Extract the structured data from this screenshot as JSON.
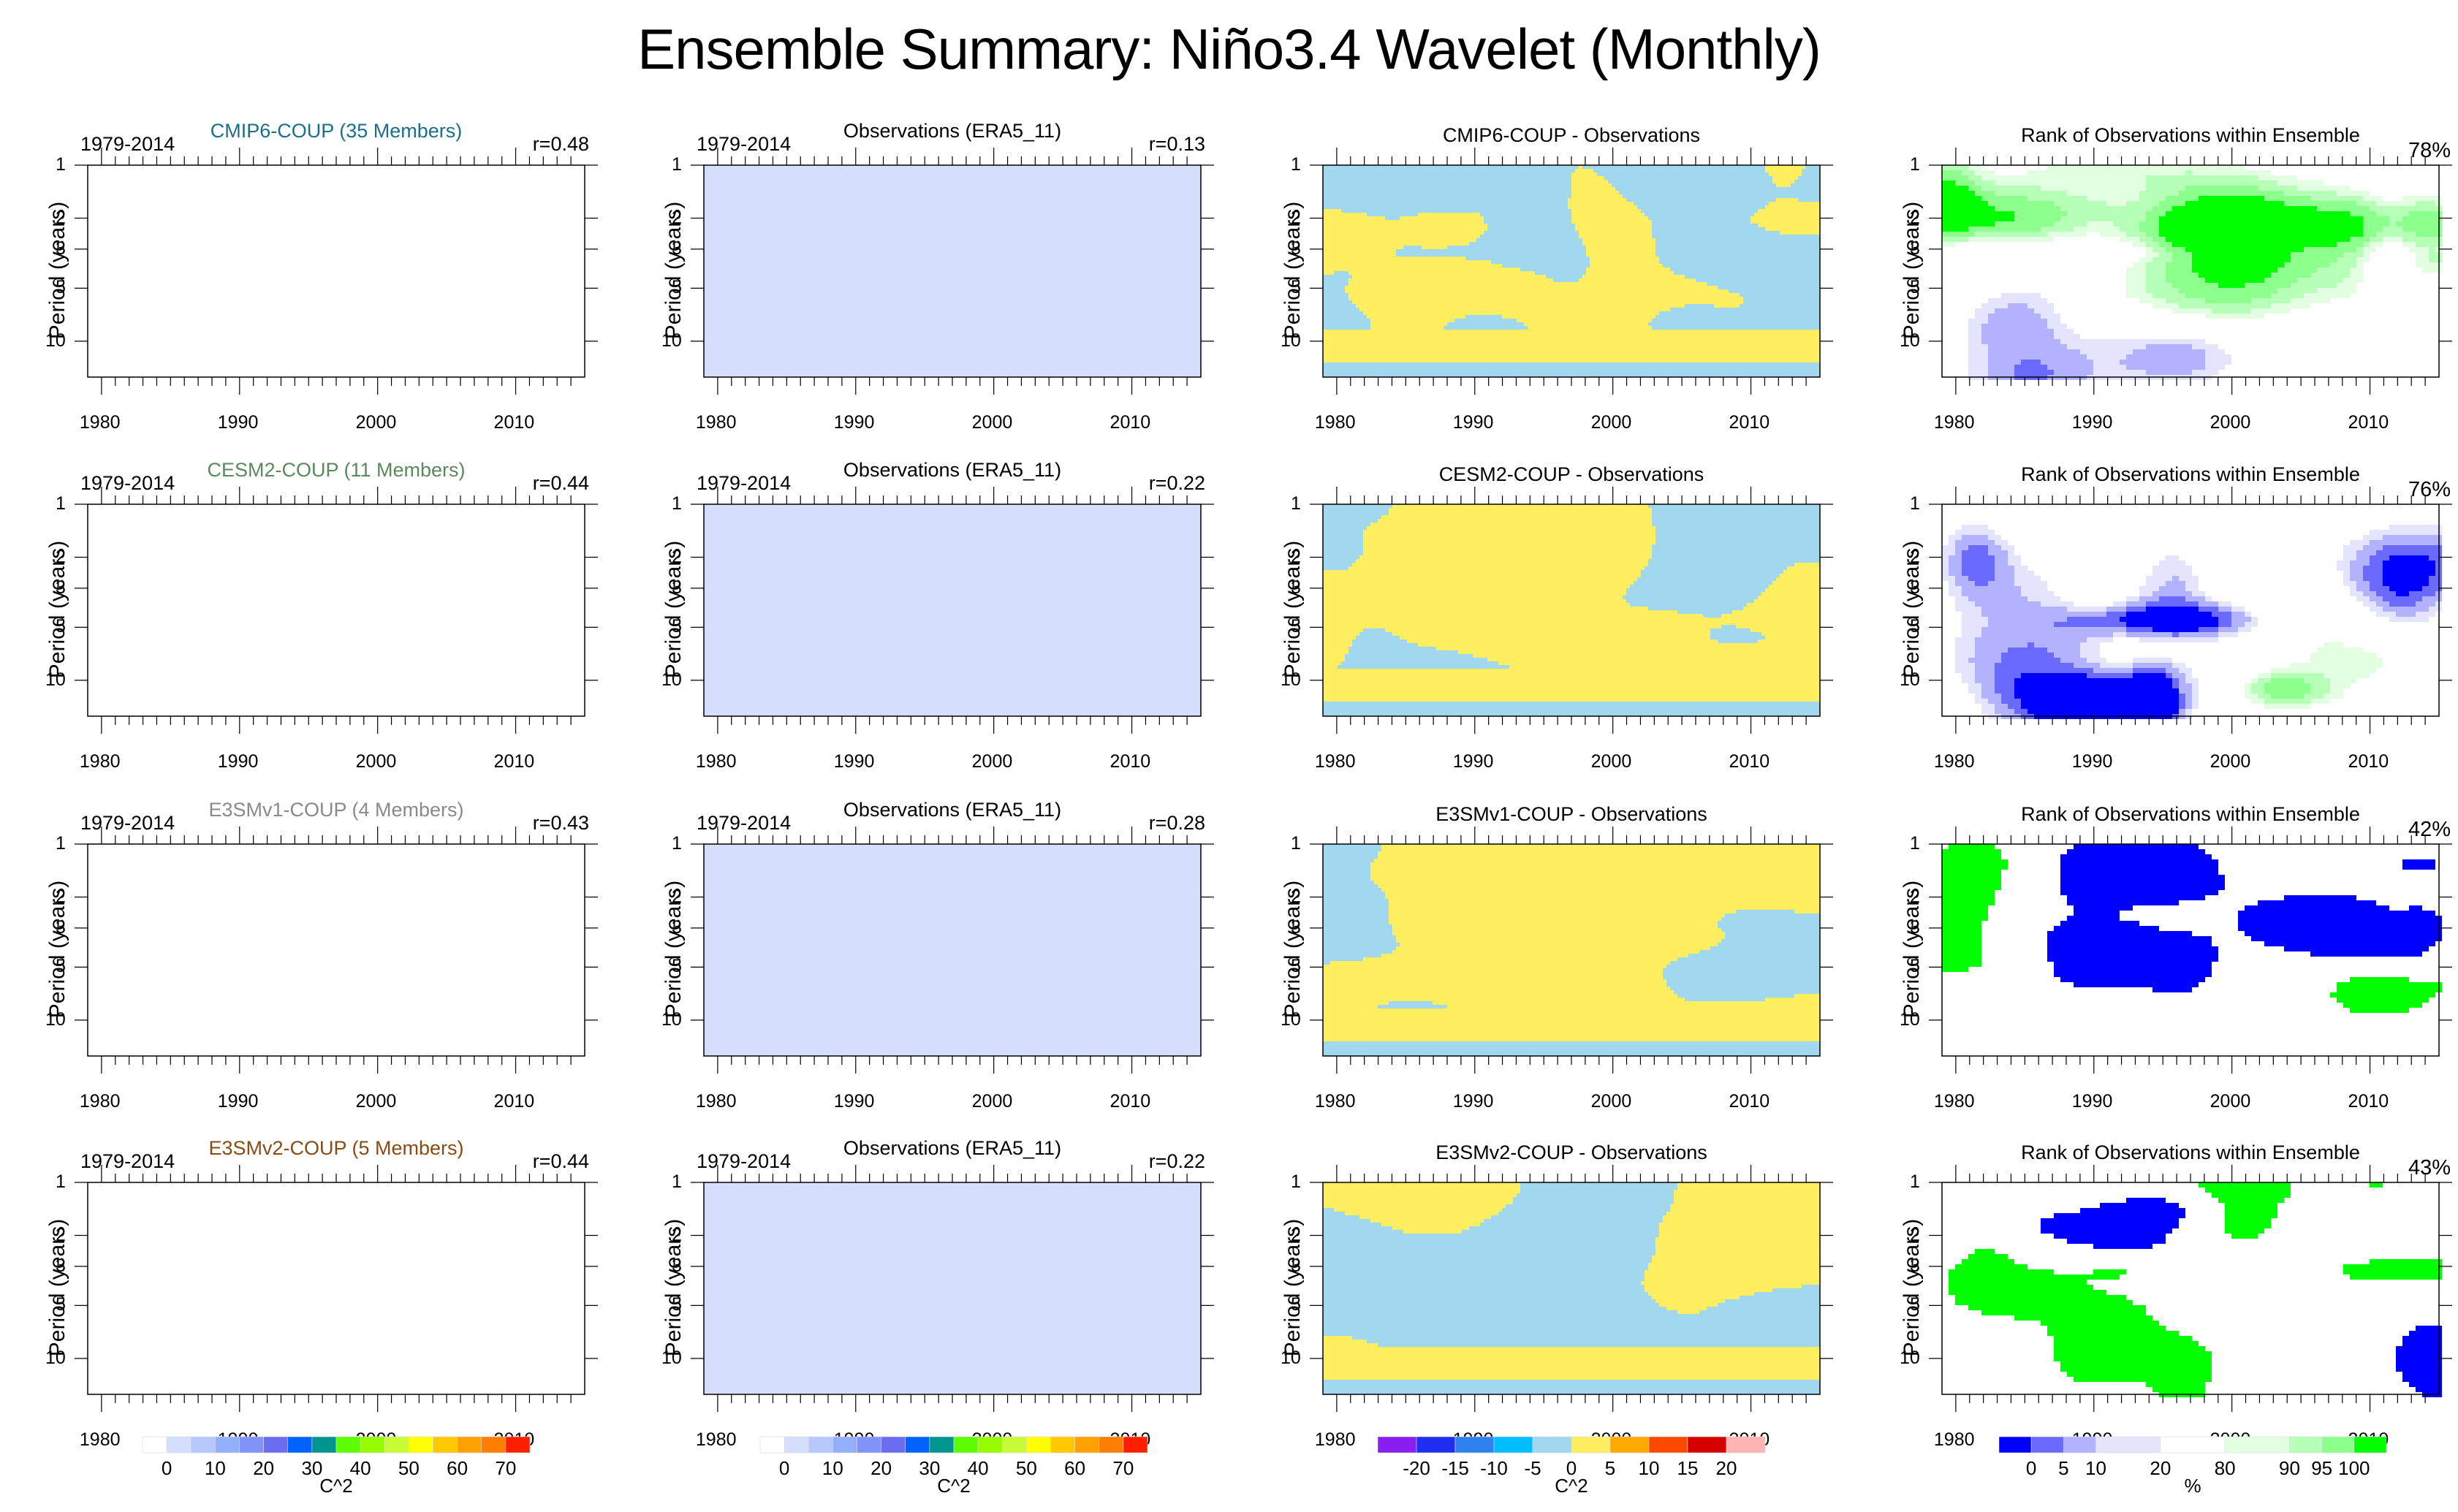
{
  "title": "Ensemble Summary: Niño3.4 Wavelet (Monthly)",
  "chart_data": {
    "type": "heatmap",
    "title": "Ensemble Summary: Niño3.4 Wavelet (Monthly)",
    "xlabel": "",
    "ylabel": "Period (years)",
    "xlim": [
      1979,
      2015
    ],
    "ylim": [
      1,
      16
    ],
    "yscale": "log",
    "x_ticks": [
      "1980",
      "1990",
      "2000",
      "2010"
    ],
    "y_ticks": [
      "1",
      "2",
      "3",
      "5",
      "10"
    ],
    "rows": [
      {
        "model": {
          "title": "CMIP6-COUP (35 Members)",
          "title_color": "#1a6f8a",
          "period": "1979-2014",
          "r": "r=0.48",
          "field": "empty"
        },
        "obs": {
          "title": "Observations (ERA5_11)",
          "period": "1979-2014",
          "r": "r=0.13",
          "field": "uniform 0-5"
        },
        "diff": {
          "title": "CMIP6-COUP - Observations",
          "field": "mostly -5..0 and 0..5"
        },
        "rank": {
          "title": "Rank of Observations within Ensemble",
          "pct": "78%"
        }
      },
      {
        "model": {
          "title": "CESM2-COUP (11 Members)",
          "title_color": "#5a8a5a",
          "period": "1979-2014",
          "r": "r=0.44",
          "field": "empty"
        },
        "obs": {
          "title": "Observations (ERA5_11)",
          "period": "1979-2014",
          "r": "r=0.22",
          "field": "uniform 0-5"
        },
        "diff": {
          "title": "CESM2-COUP - Observations",
          "field": "mostly -5..0 and 0..5"
        },
        "rank": {
          "title": "Rank of Observations within Ensemble",
          "pct": "76%"
        }
      },
      {
        "model": {
          "title": "E3SMv1-COUP (4 Members)",
          "title_color": "#8a8a8a",
          "period": "1979-2014",
          "r": "r=0.43",
          "field": "empty"
        },
        "obs": {
          "title": "Observations (ERA5_11)",
          "period": "1979-2014",
          "r": "r=0.28",
          "field": "uniform 0-5"
        },
        "diff": {
          "title": "E3SMv1-COUP - Observations",
          "field": "mostly -5..0 and 0..5"
        },
        "rank": {
          "title": "Rank of Observations within Ensemble",
          "pct": "42%"
        }
      },
      {
        "model": {
          "title": "E3SMv2-COUP (5 Members)",
          "title_color": "#8a4a14",
          "period": "1979-2014",
          "r": "r=0.44",
          "field": "empty"
        },
        "obs": {
          "title": "Observations (ERA5_11)",
          "period": "1979-2014",
          "r": "r=0.22",
          "field": "uniform 0-5"
        },
        "diff": {
          "title": "E3SMv2-COUP - Observations",
          "field": "mostly -5..0 and 0..5"
        },
        "rank": {
          "title": "Rank of Observations within Ensemble",
          "pct": "43%"
        }
      }
    ],
    "colorbars": [
      {
        "name": "power",
        "title": "C^2",
        "colors": [
          "#ffffff",
          "#d5dffb",
          "#b6c7fb",
          "#94affa",
          "#8093f9",
          "#6b6cf2",
          "#0062ff",
          "#00968f",
          "#5dfc00",
          "#97fc00",
          "#c9fc36",
          "#ffff00",
          "#ffc800",
          "#ffa000",
          "#ff7d00",
          "#ff1e00"
        ],
        "labels": [
          "0",
          "10",
          "20",
          "30",
          "40",
          "50",
          "60",
          "70"
        ]
      },
      {
        "name": "power-obs",
        "title": "C^2",
        "colors": [
          "#ffffff",
          "#d5dffb",
          "#b6c7fb",
          "#94affa",
          "#8093f9",
          "#6b6cf2",
          "#0062ff",
          "#00968f",
          "#5dfc00",
          "#97fc00",
          "#c9fc36",
          "#ffff00",
          "#ffc800",
          "#ffa000",
          "#ff7d00",
          "#ff1e00"
        ],
        "labels": [
          "0",
          "10",
          "20",
          "30",
          "40",
          "50",
          "60",
          "70"
        ]
      },
      {
        "name": "difference",
        "title": "C^2",
        "colors": [
          "#8a1ef0",
          "#1e2ef2",
          "#2d82f0",
          "#00beff",
          "#a2d7f0",
          "#ffee60",
          "#ffa800",
          "#ff4800",
          "#d70000",
          "#ffb4b4"
        ],
        "labels": [
          "-20",
          "-15",
          "-10",
          "-5",
          "0",
          "5",
          "10",
          "15",
          "20"
        ]
      },
      {
        "name": "rank",
        "title": "%",
        "colors": [
          "#0000ff",
          "#6a6aff",
          "#b2b2ff",
          "#e4e4ff",
          "#ffffff",
          "#e2ffe2",
          "#b6ffb6",
          "#8cff8c",
          "#00ff00"
        ],
        "widths": [
          1,
          1,
          1,
          2,
          2,
          2,
          1,
          1,
          1
        ],
        "labels": [
          "0",
          "5",
          "10",
          "20",
          "80",
          "90",
          "95",
          "100"
        ]
      }
    ]
  }
}
